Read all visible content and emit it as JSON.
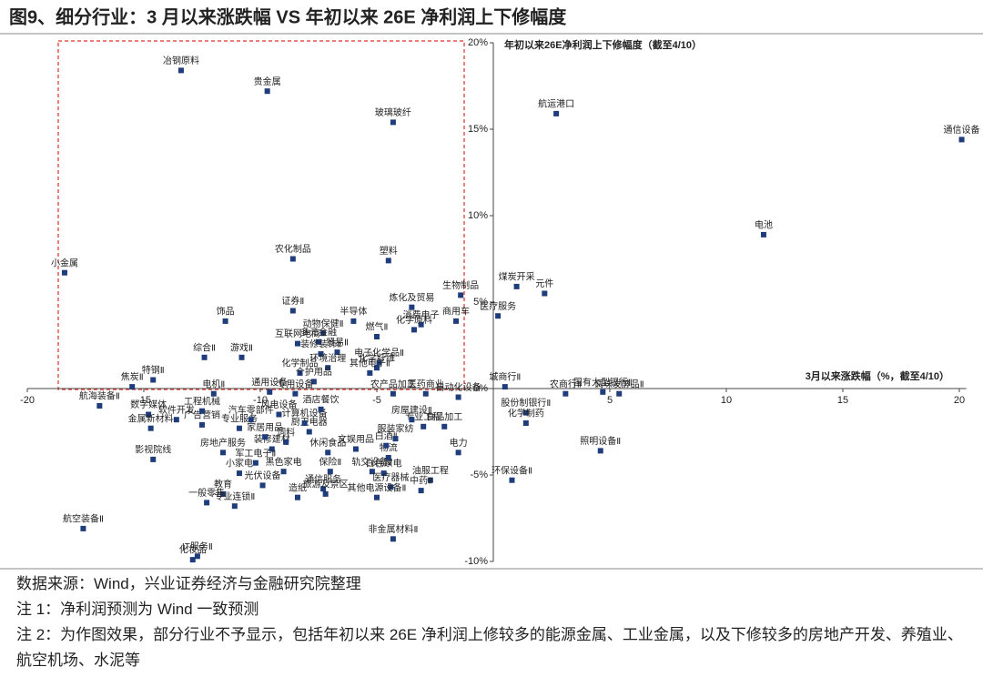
{
  "chart_data": {
    "type": "scatter",
    "title": "图9、细分行业：3 月以来涨跌幅 VS 年初以来 26E 净利润上下修幅度",
    "xlabel": "3月以来涨跌幅（%，截至4/10）",
    "ylabel": "年初以来26E净利润上下修幅度（截至4/10）",
    "color": "#1f3d7a",
    "xlim": [
      -20,
      20.3
    ],
    "ylim": [
      -10,
      20
    ],
    "xticks": [
      -20,
      -15,
      -10,
      -5,
      5,
      10,
      15,
      20
    ],
    "yticks": [
      {
        "value": 20,
        "label": "20%"
      },
      {
        "value": 15,
        "label": "15%"
      },
      {
        "value": 10,
        "label": "10%"
      },
      {
        "value": 5,
        "label": "5%"
      },
      {
        "value": 0,
        "label": "0%"
      },
      {
        "value": -5,
        "label": "-5%"
      },
      {
        "value": -10,
        "label": "-10%"
      }
    ],
    "labels": [
      "冶钢原料",
      "贵金属",
      "玻璃玻纤",
      "小金属",
      "农化制品",
      "塑料",
      "生物制品",
      "炼化及贸易",
      "证券Ⅱ",
      "饰品",
      "消费电子",
      "半导体",
      "商用车",
      "动物保健Ⅱ",
      "燃气Ⅱ",
      "化学原料",
      "互联网电商",
      "多元金融",
      "综合Ⅱ",
      "游戏Ⅱ",
      "装修装饰Ⅱ",
      "贸易Ⅱ",
      "电子化学品Ⅱ",
      "化学制品",
      "环境治理",
      "化学纤维",
      "其他电子Ⅱ",
      "个护用品",
      "特钢Ⅱ",
      "焦炭Ⅱ",
      "电机Ⅱ",
      "通用设备",
      "航海装备Ⅱ",
      "数字媒体",
      "软件开发",
      "金属新材料",
      "广告营销",
      "专业服务",
      "影视院线",
      "房地产服务",
      "装修建材",
      "家居用品",
      "军工电子Ⅱ",
      "黑色家电",
      "小家电",
      "教育",
      "光伏设备",
      "一般零售",
      "专业连锁Ⅱ",
      "通信服务",
      "旅游及景区",
      "造纸",
      "保险Ⅱ",
      "休闲食品",
      "文娱用品",
      "轨交设备Ⅱ",
      "白色家电",
      "医疗器械",
      "其他电源设备Ⅱ",
      "油服工程",
      "中药Ⅱ",
      "物流",
      "白酒Ⅱ",
      "服装家纺",
      "电力",
      "食品加工",
      "非金属材料Ⅱ",
      "航空装备Ⅱ",
      "IT服务Ⅱ",
      "化妆品",
      "饲料",
      "厨卫电器",
      "计算机设备",
      "工程机械",
      "专用设备",
      "农产品加工",
      "医药商业",
      "自动化设备",
      "风电设备",
      "酒店餐饮",
      "专业工程",
      "房屋建设Ⅱ",
      "汽车零部件",
      "航运港口",
      "通信设备",
      "电池",
      "煤炭开采",
      "元件",
      "医疗服务",
      "城商行Ⅱ",
      "农商行Ⅱ",
      "国有大型银行Ⅱ",
      "调味发酵品Ⅱ",
      "股份制银行Ⅱ",
      "化学制药",
      "照明设备Ⅱ",
      "环保设备Ⅱ"
    ],
    "x": [
      -13.4,
      -9.7,
      -4.3,
      -18.4,
      -8.6,
      -4.5,
      -1.4,
      -3.5,
      -8.6,
      -11.5,
      -3.1,
      -6.0,
      -1.6,
      -7.3,
      -5.0,
      -3.4,
      -8.4,
      -7.5,
      -12.4,
      -10.8,
      -7.4,
      -6.7,
      -4.9,
      -8.3,
      -7.1,
      -5.0,
      -5.3,
      -7.7,
      -14.6,
      -15.5,
      -12.0,
      -9.6,
      -16.9,
      -14.8,
      -13.6,
      -14.7,
      -12.5,
      -10.9,
      -14.6,
      -11.6,
      -9.5,
      -9.8,
      -10.2,
      -9.0,
      -10.9,
      -11.6,
      -9.9,
      -12.3,
      -11.1,
      -7.3,
      -7.2,
      -8.4,
      -7.0,
      -7.1,
      -5.9,
      -5.2,
      -4.7,
      -4.4,
      -5.0,
      -2.7,
      -3.1,
      -4.5,
      -4.6,
      -4.2,
      -1.5,
      -2.1,
      -4.3,
      -17.6,
      -12.7,
      -12.9,
      -8.9,
      -7.9,
      -8.1,
      -12.5,
      -8.5,
      -4.3,
      -2.9,
      -1.5,
      -9.2,
      -7.4,
      -3.0,
      -3.5,
      -10.4,
      2.7,
      20.1,
      11.6,
      1.0,
      2.2,
      0.2,
      0.5,
      3.1,
      4.7,
      5.4,
      1.4,
      1.4,
      4.6,
      0.8
    ],
    "values": [
      18.4,
      17.2,
      15.4,
      6.7,
      7.5,
      7.4,
      5.4,
      4.7,
      4.5,
      3.9,
      3.7,
      3.9,
      3.9,
      3.2,
      3.0,
      3.4,
      2.6,
      2.7,
      1.8,
      1.8,
      2.0,
      2.1,
      1.5,
      0.9,
      1.2,
      1.2,
      0.9,
      0.4,
      0.5,
      0.1,
      -0.3,
      -0.2,
      -1.0,
      -1.5,
      -1.8,
      -2.3,
      -2.1,
      -2.3,
      -4.1,
      -3.7,
      -3.5,
      -2.8,
      -4.3,
      -4.8,
      -4.9,
      -6.1,
      -5.6,
      -6.6,
      -6.8,
      -5.8,
      -6.1,
      -6.3,
      -4.8,
      -3.7,
      -3.5,
      -4.8,
      -4.9,
      -5.7,
      -6.3,
      -5.3,
      -5.9,
      -4.0,
      -3.3,
      -2.9,
      -3.7,
      -2.2,
      -8.7,
      -8.1,
      -9.7,
      -9.9,
      -3.1,
      -2.5,
      -2.0,
      -1.3,
      -0.3,
      -0.3,
      -0.3,
      -0.5,
      -1.5,
      -1.2,
      -2.2,
      -1.8,
      -1.8,
      15.9,
      14.4,
      8.9,
      5.9,
      5.5,
      4.2,
      0.1,
      -0.3,
      -0.2,
      -0.3,
      -1.4,
      -2.0,
      -3.6,
      -5.3
    ]
  },
  "notes": [
    "数据来源：Wind，兴业证券经济与金融研究院整理",
    "注 1：净利润预测为 Wind 一致预测",
    "注 2：为作图效果，部分行业不予显示，包括年初以来 26E 净利润上修较多的能源金属、工业金属，以及下修较多的房地产开发、养殖业、航空机场、水泥等"
  ]
}
